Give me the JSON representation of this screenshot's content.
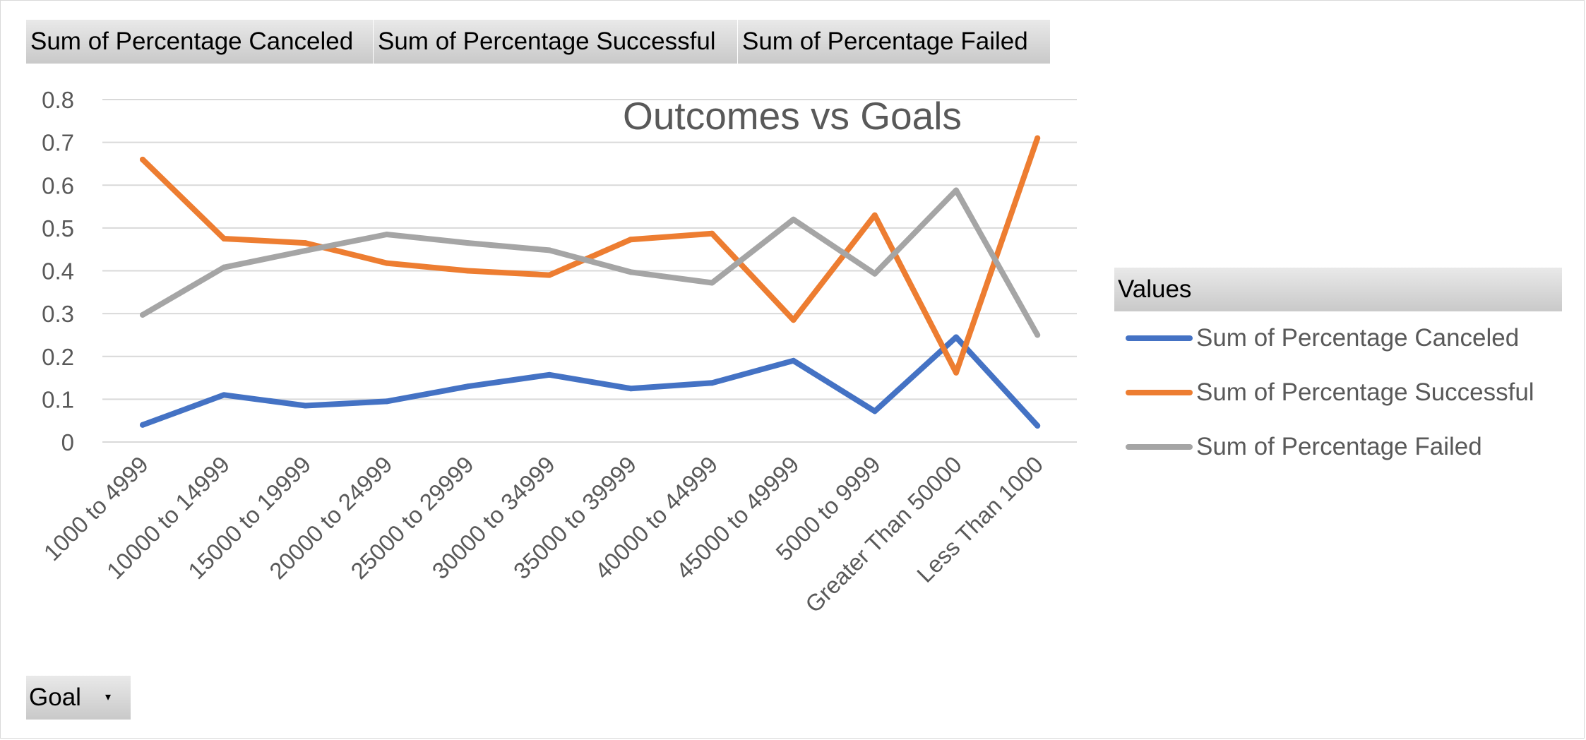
{
  "field_buttons": [
    {
      "label": "Sum of Percentage  Canceled"
    },
    {
      "label": "Sum of Percentage  Successful"
    },
    {
      "label": "Sum of Percentage  Failed"
    }
  ],
  "filter_button": {
    "label": "Goal",
    "caret": "▾"
  },
  "legend": {
    "header": "Values",
    "placement": "right"
  },
  "chart_data": {
    "type": "line",
    "title": "Outcomes vs Goals",
    "xlabel": "",
    "ylabel": "",
    "ylim": [
      0,
      0.8
    ],
    "yticks": [
      "0",
      "0.1",
      "0.2",
      "0.3",
      "0.4",
      "0.5",
      "0.6",
      "0.7",
      "0.8"
    ],
    "grid": true,
    "categories": [
      "1000 to 4999",
      "10000 to 14999",
      "15000 to 19999",
      "20000 to 24999",
      "25000 to 29999",
      "30000 to 34999",
      "35000 to 39999",
      "40000 to 44999",
      "45000 to 49999",
      "5000 to 9999",
      "Greater Than 50000",
      "Less Than 1000"
    ],
    "series": [
      {
        "name": "Sum of Percentage Canceled",
        "color": "#4472c4",
        "values": [
          0.04,
          0.11,
          0.085,
          0.095,
          0.13,
          0.157,
          0.125,
          0.138,
          0.19,
          0.072,
          0.245,
          0.038
        ]
      },
      {
        "name": "Sum of Percentage Successful",
        "color": "#ed7d31",
        "values": [
          0.66,
          0.475,
          0.465,
          0.418,
          0.4,
          0.39,
          0.473,
          0.487,
          0.285,
          0.53,
          0.162,
          0.71
        ]
      },
      {
        "name": "Sum of Percentage Failed",
        "color": "#a5a5a5",
        "values": [
          0.297,
          0.408,
          0.447,
          0.485,
          0.465,
          0.448,
          0.397,
          0.372,
          0.52,
          0.393,
          0.588,
          0.25
        ]
      }
    ]
  }
}
